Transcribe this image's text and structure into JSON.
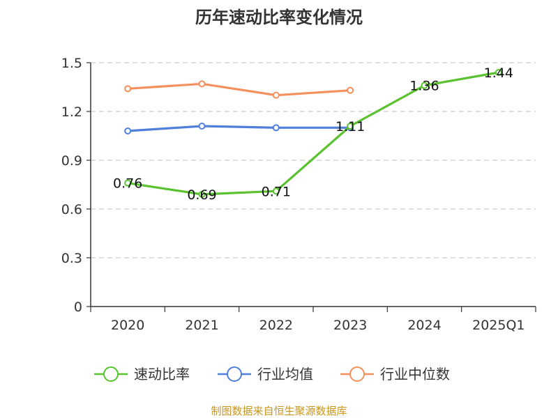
{
  "chart_data": {
    "type": "line",
    "title": "历年速动比率变化情况",
    "categories": [
      "2020",
      "2021",
      "2022",
      "2023",
      "2024",
      "2025Q1"
    ],
    "y_ticks": [
      "0",
      "0.3",
      "0.6",
      "0.9",
      "1.2",
      "1.5"
    ],
    "ylim": [
      0,
      1.5
    ],
    "grid": true,
    "legend_position": "bottom",
    "series": [
      {
        "name": "速动比率",
        "color": "#5ac22e",
        "values": [
          0.76,
          0.69,
          0.71,
          1.11,
          1.36,
          1.44
        ],
        "labels": [
          "0.76",
          "0.69",
          "0.71",
          "1.11",
          "1.36",
          "1.44"
        ]
      },
      {
        "name": "行业均值",
        "color": "#4f7fdc",
        "values": [
          1.08,
          1.11,
          1.1,
          1.1,
          null,
          null
        ]
      },
      {
        "name": "行业中位数",
        "color": "#f5905c",
        "values": [
          1.34,
          1.37,
          1.3,
          1.33,
          null,
          null
        ]
      }
    ]
  },
  "source_text": "制图数据来自恒生聚源数据库",
  "colors": {
    "source": "#c8961e",
    "grid": "#cccccc",
    "axis": "#333333"
  }
}
